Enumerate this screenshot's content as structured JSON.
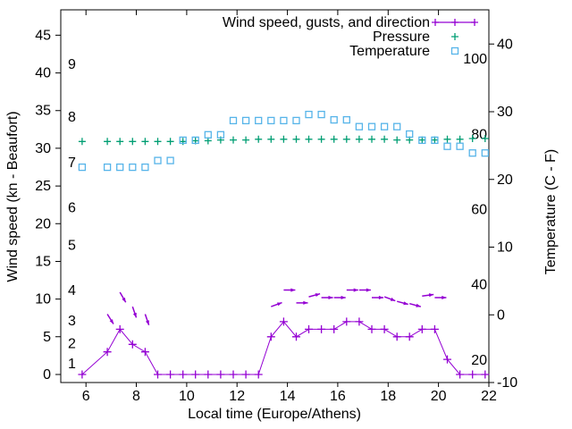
{
  "chart_data": {
    "type": "line",
    "title": "",
    "xlabel": "Local time (Europe/Athens)",
    "ylabel_left": "Wind speed (kn - Beaufort)",
    "ylabel_right": "Temperature (C - F)",
    "legend_position": "top-right-inside",
    "grid": "off",
    "x_range_hours": [
      5,
      22
    ],
    "x_ticks": [
      6,
      8,
      10,
      12,
      14,
      16,
      18,
      20,
      22
    ],
    "y_left_ticks_kn": [
      0,
      5,
      10,
      15,
      20,
      25,
      30,
      35,
      40,
      45
    ],
    "y_right_ticks_c": [
      40,
      30,
      20,
      10,
      0,
      -10
    ],
    "beaufort_inner_labels": [
      {
        "label": "1",
        "kn": 1.3
      },
      {
        "label": "2",
        "kn": 4
      },
      {
        "label": "3",
        "kn": 7
      },
      {
        "label": "4",
        "kn": 11
      },
      {
        "label": "5",
        "kn": 17
      },
      {
        "label": "6",
        "kn": 22
      },
      {
        "label": "7",
        "kn": 28
      },
      {
        "label": "8",
        "kn": 34
      },
      {
        "label": "9",
        "kn": 41
      }
    ],
    "fahrenheit_inner_labels": [
      100,
      80,
      60,
      40,
      20
    ],
    "legend": [
      {
        "label": "Wind speed, gusts, and direction",
        "marker": "line-plus",
        "color": "#9400d3"
      },
      {
        "label": "Pressure",
        "marker": "plus",
        "color": "#009e73"
      },
      {
        "label": "Temperature",
        "marker": "open-square",
        "color": "#56b4e9"
      }
    ],
    "times_hours": [
      5.85,
      6.85,
      7.35,
      7.85,
      8.35,
      8.85,
      9.35,
      9.85,
      10.35,
      10.85,
      11.35,
      11.85,
      12.35,
      12.85,
      13.35,
      13.85,
      14.35,
      14.85,
      15.35,
      15.85,
      16.35,
      16.85,
      17.35,
      17.85,
      18.35,
      18.85,
      19.35,
      19.85,
      20.35,
      20.85,
      21.35,
      21.85
    ],
    "wind_speed_kn": [
      0,
      3,
      6,
      4,
      3,
      0,
      0,
      0,
      0,
      0,
      0,
      0,
      0,
      0,
      5,
      7,
      5,
      6,
      6,
      6,
      7,
      7,
      6,
      6,
      5,
      5,
      6,
      6,
      2,
      0,
      0,
      0
    ],
    "wind_gusts": [
      {
        "t": 6.85,
        "kn": 8.0,
        "angle_deg": -58
      },
      {
        "t": 7.35,
        "kn": 10.9,
        "angle_deg": -60
      },
      {
        "t": 7.85,
        "kn": 9.0,
        "angle_deg": -71
      },
      {
        "t": 8.35,
        "kn": 8.0,
        "angle_deg": -71
      },
      {
        "t": 13.35,
        "kn": 9.0,
        "angle_deg": 20
      },
      {
        "t": 13.85,
        "kn": 11.2,
        "angle_deg": 0
      },
      {
        "t": 14.35,
        "kn": 9.5,
        "angle_deg": 0
      },
      {
        "t": 14.85,
        "kn": 10.3,
        "angle_deg": 15
      },
      {
        "t": 15.35,
        "kn": 10.2,
        "angle_deg": 0
      },
      {
        "t": 15.85,
        "kn": 10.2,
        "angle_deg": 0
      },
      {
        "t": 16.35,
        "kn": 11.2,
        "angle_deg": 0
      },
      {
        "t": 16.85,
        "kn": 11.2,
        "angle_deg": 0
      },
      {
        "t": 17.35,
        "kn": 10.2,
        "angle_deg": 0
      },
      {
        "t": 17.85,
        "kn": 10.3,
        "angle_deg": -20
      },
      {
        "t": 18.35,
        "kn": 9.7,
        "angle_deg": -15
      },
      {
        "t": 18.85,
        "kn": 9.4,
        "angle_deg": -15
      },
      {
        "t": 19.35,
        "kn": 10.4,
        "angle_deg": 8
      },
      {
        "t": 19.85,
        "kn": 10.2,
        "angle_deg": 0
      }
    ],
    "pressure_level_on_left_axis": [
      30.9,
      30.9,
      30.9,
      30.9,
      30.9,
      30.9,
      30.9,
      30.9,
      31.0,
      31.0,
      31.1,
      31.1,
      31.1,
      31.2,
      31.2,
      31.2,
      31.2,
      31.2,
      31.2,
      31.2,
      31.2,
      31.2,
      31.2,
      31.2,
      31.1,
      31.1,
      31.1,
      31.1,
      31.2,
      31.2,
      31.3,
      31.3
    ],
    "pressure_note": "pressure curve is drawn without a numeric axis; values are plot positions on the left-axis scale",
    "temperature_c": [
      21.8,
      21.8,
      21.8,
      21.8,
      21.8,
      22.8,
      22.8,
      25.8,
      25.8,
      26.6,
      26.6,
      28.7,
      28.7,
      28.7,
      28.7,
      28.7,
      28.7,
      29.6,
      29.6,
      28.8,
      28.8,
      27.8,
      27.8,
      27.8,
      27.8,
      26.7,
      25.8,
      25.8,
      24.9,
      24.9,
      23.9,
      23.9
    ]
  }
}
